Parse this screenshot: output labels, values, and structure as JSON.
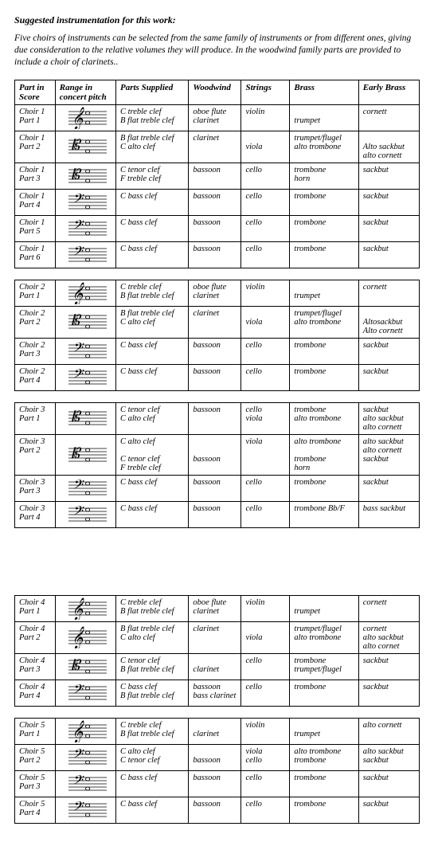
{
  "title": "Suggested instrumentation for this work:",
  "intro": "Five choirs of instruments can be selected from the same family of instruments or from different ones, giving due consideration to the relative volumes they will produce. In the woodwind family parts are provided to include a choir of clarinets..",
  "headers": [
    "Part in Score",
    "Range in concert pitch",
    "Parts Supplied",
    "Woodwind",
    "Strings",
    "Brass",
    "Early Brass"
  ],
  "sections": [
    {
      "showHeader": true,
      "rows": [
        {
          "part": "Choir 1\nPart 1",
          "clef": "treble",
          "clefs": "C treble clef\nB flat treble clef",
          "ww": "oboe flute\nclarinet",
          "str": "violin",
          "brass": "\ntrumpet",
          "early": "cornett"
        },
        {
          "part": "Choir 1\nPart 2",
          "clef": "alto",
          "clefs": "B flat treble clef\nC alto clef",
          "ww": "clarinet",
          "str": "\nviola",
          "brass": "trumpet/flugel\nalto trombone",
          "early": "\nAlto sackbut\nalto cornett"
        },
        {
          "part": "Choir 1\nPart 3",
          "clef": "alto",
          "clefs": "C tenor clef\nF treble clef",
          "ww": "bassoon",
          "str": "cello",
          "brass": "trombone\nhorn",
          "early": "sackbut"
        },
        {
          "part": "Choir 1\nPart 4",
          "clef": "bass",
          "clefs": "C bass clef",
          "ww": "bassoon",
          "str": "cello",
          "brass": "trombone",
          "early": "sackbut"
        },
        {
          "part": "Choir 1\nPart 5",
          "clef": "bass",
          "clefs": "C bass clef",
          "ww": "bassoon",
          "str": "cello",
          "brass": "trombone",
          "early": "sackbut"
        },
        {
          "part": "Choir 1\nPart 6",
          "clef": "bass",
          "clefs": "C bass clef",
          "ww": "bassoon",
          "str": "cello",
          "brass": "trombone",
          "early": "sackbut"
        }
      ]
    },
    {
      "showHeader": false,
      "rows": [
        {
          "part": "Choir 2\nPart 1",
          "clef": "treble",
          "clefs": "C treble clef\nB flat treble clef",
          "ww": "oboe flute\nclarinet",
          "str": "violin",
          "brass": "\ntrumpet",
          "early": "cornett"
        },
        {
          "part": "Choir 2\nPart 2",
          "clef": "alto",
          "clefs": "B flat treble clef\nC alto clef",
          "ww": "clarinet",
          "str": "\nviola",
          "brass": "trumpet/flugel\nalto trombone",
          "early": "\nAltosackbut\nAlto cornett"
        },
        {
          "part": "Choir 2\nPart 3",
          "clef": "bass",
          "clefs": "C bass clef",
          "ww": "bassoon",
          "str": "cello",
          "brass": "trombone",
          "early": "sackbut"
        },
        {
          "part": "Choir 2\nPart 4",
          "clef": "bass",
          "clefs": "C bass clef",
          "ww": "bassoon",
          "str": "cello",
          "brass": "trombone",
          "early": "sackbut"
        }
      ]
    },
    {
      "showHeader": false,
      "rows": [
        {
          "part": "Choir 3\nPart 1",
          "clef": "alto",
          "clefs": "C tenor clef\nC alto clef",
          "ww": "bassoon",
          "str": "cello\nviola",
          "brass": "trombone\nalto trombone",
          "early": "sackbut\nalto sackbut\nalto cornett"
        },
        {
          "part": "Choir 3\nPart 2",
          "clef": "alto",
          "clefs": "C alto clef\n\nC tenor clef\nF treble clef",
          "ww": "\n\nbassoon",
          "str": "viola",
          "brass": "alto trombone\n\ntrombone\nhorn",
          "early": "alto sackbut\nalto cornett\nsackbut"
        },
        {
          "part": "Choir 3\nPart 3",
          "clef": "bass",
          "clefs": "C bass clef",
          "ww": "bassoon",
          "str": "cello",
          "brass": "trombone",
          "early": "sackbut"
        },
        {
          "part": "Choir 3\nPart 4",
          "clef": "bass",
          "clefs": "C bass clef",
          "ww": "bassoon",
          "str": "cello",
          "brass": "trombone Bb/F",
          "early": "bass sackbut"
        }
      ]
    },
    {
      "showHeader": false,
      "gapBefore": true,
      "rows": [
        {
          "part": "Choir 4\nPart 1",
          "clef": "treble",
          "clefs": "C treble clef\nB flat treble clef",
          "ww": "oboe flute\nclarinet",
          "str": "violin",
          "brass": "\ntrumpet",
          "early": "cornett"
        },
        {
          "part": "Choir 4\nPart 2",
          "clef": "treble",
          "clefs": "B flat treble clef\nC alto clef",
          "ww": "clarinet",
          "str": "\nviola",
          "brass": "trumpet/flugel\nalto trombone",
          "early": "cornett\nalto sackbut\nalto cornet"
        },
        {
          "part": "Choir 4\nPart 3",
          "clef": "alto",
          "clefs": "C tenor clef\nB flat treble clef",
          "ww": "\nclarinet",
          "str": "cello",
          "brass": "trombone\ntrumpet/flugel",
          "early": "sackbut"
        },
        {
          "part": "Choir 4\nPart 4",
          "clef": "bass",
          "clefs": "C bass clef\nB flat treble clef",
          "ww": "bassoon\nbass clarinet",
          "str": "cello",
          "brass": "trombone",
          "early": "sackbut"
        }
      ]
    },
    {
      "showHeader": false,
      "rows": [
        {
          "part": "Choir 5\nPart 1",
          "clef": "treble",
          "clefs": "C treble clef\nB flat treble clef",
          "ww": "\nclarinet",
          "str": "violin",
          "brass": "\ntrumpet",
          "early": "alto cornett"
        },
        {
          "part": "Choir 5\nPart 2",
          "clef": "bass",
          "clefs": "C alto clef\nC tenor clef",
          "ww": "\nbassoon",
          "str": "viola\ncello",
          "brass": "alto trombone\ntrombone",
          "early": "alto sackbut\nsackbut"
        },
        {
          "part": "Choir 5\nPart 3",
          "clef": "bass",
          "clefs": "C bass clef",
          "ww": "bassoon",
          "str": "cello",
          "brass": "trombone",
          "early": "sackbut"
        },
        {
          "part": "Choir 5\nPart 4",
          "clef": "bass",
          "clefs": "C bass clef",
          "ww": "bassoon",
          "str": "cello",
          "brass": "trombone",
          "early": "sackbut"
        }
      ]
    }
  ],
  "staff": {
    "width": 62,
    "height": 28,
    "line_color": "#000",
    "note_color": "#000"
  }
}
